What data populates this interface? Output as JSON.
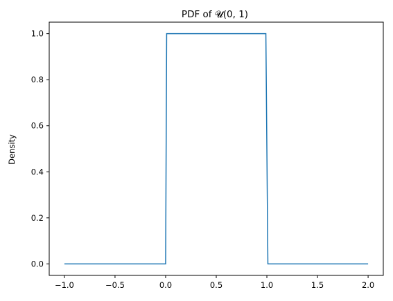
{
  "chart_data": {
    "type": "line",
    "title": "PDF of 𝓤(0, 1)",
    "xlabel": "",
    "ylabel": "Density",
    "xlim": [
      -1.15,
      2.15
    ],
    "ylim": [
      -0.05,
      1.05
    ],
    "x_ticks": [
      -1.0,
      -0.5,
      0.0,
      0.5,
      1.0,
      1.5,
      2.0
    ],
    "x_tick_labels": [
      "−1.0",
      "−0.5",
      "0.0",
      "0.5",
      "1.0",
      "1.5",
      "2.0"
    ],
    "y_ticks": [
      0.0,
      0.2,
      0.4,
      0.6,
      0.8,
      1.0
    ],
    "y_tick_labels": [
      "0.0",
      "0.2",
      "0.4",
      "0.6",
      "0.8",
      "1.0"
    ],
    "grid": false,
    "series": [
      {
        "color": "#1f77b4",
        "x": [
          -1.0,
          0.0,
          0.01,
          0.99,
          1.01,
          2.0
        ],
        "y": [
          0.0,
          0.0,
          1.0,
          1.0,
          0.0,
          0.0
        ]
      }
    ]
  }
}
